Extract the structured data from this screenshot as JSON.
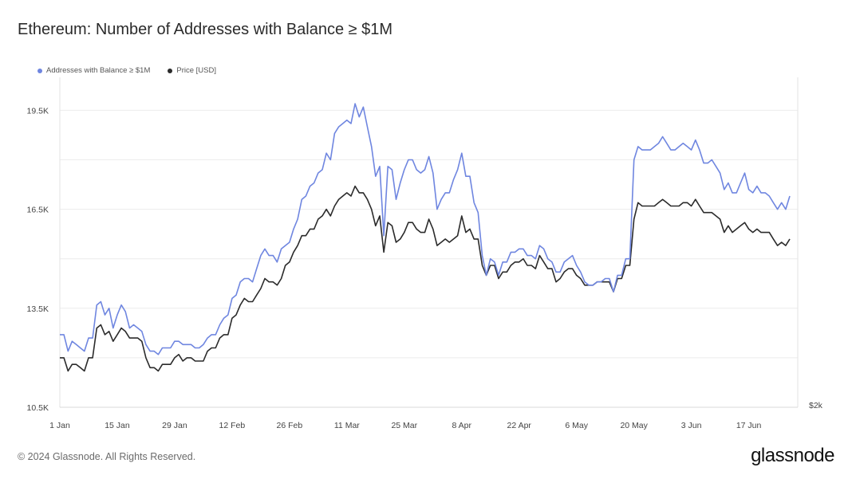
{
  "title": "Ethereum: Number of Addresses with Balance ≥ $1M",
  "legend": [
    {
      "label": "Addresses with Balance ≥ $1M",
      "color": "#6f86e0"
    },
    {
      "label": "Price [USD]",
      "color": "#2b2b2b"
    }
  ],
  "footer": "© 2024 Glassnode. All Rights Reserved.",
  "brand": "glassnode",
  "chart_data": {
    "type": "line",
    "x_tick_labels": [
      "1 Jan",
      "15 Jan",
      "29 Jan",
      "12 Feb",
      "26 Feb",
      "11 Mar",
      "25 Mar",
      "8 Apr",
      "22 Apr",
      "6 May",
      "20 May",
      "3 Jun",
      "17 Jun"
    ],
    "y_left_ticks": [
      "10.5K",
      "13.5K",
      "16.5K",
      "19.5K"
    ],
    "y_left_range": [
      10500,
      20500
    ],
    "y_right_ticks": [
      "$2k"
    ],
    "grid": true,
    "legend_position": "top-left",
    "x_days": [
      0,
      1,
      2,
      3,
      4,
      5,
      6,
      7,
      8,
      9,
      10,
      11,
      12,
      13,
      14,
      15,
      16,
      17,
      18,
      19,
      20,
      21,
      22,
      23,
      24,
      25,
      26,
      27,
      28,
      29,
      30,
      31,
      32,
      33,
      34,
      35,
      36,
      37,
      38,
      39,
      40,
      41,
      42,
      43,
      44,
      45,
      46,
      47,
      48,
      49,
      50,
      51,
      52,
      53,
      54,
      55,
      56,
      57,
      58,
      59,
      60,
      61,
      62,
      63,
      64,
      65,
      66,
      67,
      68,
      69,
      70,
      71,
      72,
      73,
      74,
      75,
      76,
      77,
      78,
      79,
      80,
      81,
      82,
      83,
      84,
      85,
      86,
      87,
      88,
      89,
      90,
      91,
      92,
      93,
      94,
      95,
      96,
      97,
      98,
      99,
      100,
      101,
      102,
      103,
      104,
      105,
      106,
      107,
      108,
      109,
      110,
      111,
      112,
      113,
      114,
      115,
      116,
      117,
      118,
      119,
      120,
      121,
      122,
      123,
      124,
      125,
      126,
      127,
      128,
      129,
      130,
      131,
      132,
      133,
      134,
      135,
      136,
      137,
      138,
      139,
      140,
      141,
      142,
      143,
      144,
      145,
      146,
      147,
      148,
      149,
      150,
      151,
      152,
      153,
      154,
      155,
      156,
      157,
      158,
      159,
      160,
      161,
      162,
      163,
      164,
      165,
      166,
      167,
      168,
      169,
      170,
      171,
      172,
      173,
      174,
      175,
      176,
      177,
      178
    ],
    "series": [
      {
        "name": "Addresses with Balance ≥ $1M",
        "axis": "left",
        "values": [
          12700,
          12700,
          12200,
          12500,
          12400,
          12300,
          12200,
          12600,
          12600,
          13600,
          13700,
          13300,
          13500,
          12900,
          13300,
          13600,
          13400,
          12900,
          13000,
          12900,
          12800,
          12400,
          12200,
          12200,
          12100,
          12300,
          12300,
          12300,
          12500,
          12500,
          12400,
          12400,
          12400,
          12300,
          12300,
          12400,
          12600,
          12700,
          12700,
          13000,
          13200,
          13300,
          13800,
          13900,
          14300,
          14400,
          14400,
          14300,
          14700,
          15100,
          15300,
          15100,
          15100,
          14900,
          15300,
          15400,
          15500,
          15900,
          16200,
          16800,
          16900,
          17200,
          17300,
          17600,
          17700,
          18200,
          18000,
          18800,
          19000,
          19100,
          19200,
          19100,
          19700,
          19300,
          19600,
          19000,
          18400,
          17500,
          17800,
          15700,
          17800,
          17700,
          16800,
          17300,
          17700,
          18000,
          18000,
          17700,
          17600,
          17700,
          18100,
          17600,
          16500,
          16800,
          17000,
          17000,
          17400,
          17700,
          18200,
          17500,
          17500,
          16700,
          16400,
          15100,
          14500,
          15000,
          14900,
          14500,
          14900,
          14900,
          15200,
          15200,
          15300,
          15300,
          15100,
          15100,
          15000,
          15400,
          15300,
          15000,
          14900,
          14600,
          14600,
          14900,
          15000,
          15100,
          14800,
          14600,
          14300,
          14200,
          14200,
          14300,
          14300,
          14400,
          14400,
          14000,
          14500,
          14500,
          15000,
          15000,
          18000,
          18400,
          18300,
          18300,
          18300,
          18400,
          18500,
          18700,
          18500,
          18300,
          18300,
          18400,
          18500,
          18400,
          18300,
          18600,
          18300,
          17900,
          17900,
          18000,
          17800,
          17600,
          17100,
          17300,
          17000,
          17000,
          17300,
          17600,
          17100,
          17000,
          17200,
          17000,
          17000,
          16900,
          16700,
          16500,
          16700,
          16500,
          16900
        ]
      },
      {
        "name": "Price [USD]",
        "axis": "right",
        "values": [
          12000,
          12000,
          11600,
          11800,
          11800,
          11700,
          11600,
          12000,
          12000,
          12900,
          13000,
          12700,
          12800,
          12500,
          12700,
          12900,
          12800,
          12600,
          12600,
          12600,
          12500,
          12000,
          11700,
          11700,
          11600,
          11800,
          11800,
          11800,
          12000,
          12100,
          11900,
          12000,
          12000,
          11900,
          11900,
          11900,
          12200,
          12300,
          12300,
          12600,
          12700,
          12700,
          13200,
          13300,
          13600,
          13800,
          13700,
          13700,
          13900,
          14100,
          14400,
          14300,
          14300,
          14200,
          14400,
          14800,
          14900,
          15200,
          15400,
          15700,
          15700,
          15900,
          15900,
          16200,
          16300,
          16500,
          16300,
          16600,
          16800,
          16900,
          17000,
          16900,
          17200,
          17000,
          17000,
          16800,
          16500,
          16000,
          16300,
          15200,
          16100,
          16000,
          15500,
          15600,
          15800,
          16100,
          16100,
          15900,
          15800,
          15800,
          16200,
          15900,
          15400,
          15500,
          15600,
          15500,
          15600,
          15700,
          16300,
          15800,
          15900,
          15600,
          15600,
          14800,
          14500,
          14800,
          14800,
          14400,
          14600,
          14600,
          14800,
          14900,
          14900,
          15000,
          14800,
          14800,
          14700,
          15100,
          14900,
          14700,
          14700,
          14300,
          14400,
          14600,
          14700,
          14700,
          14500,
          14400,
          14200,
          14200,
          14200,
          14300,
          14300,
          14300,
          14300,
          14000,
          14400,
          14400,
          14800,
          14800,
          16200,
          16700,
          16600,
          16600,
          16600,
          16600,
          16700,
          16800,
          16700,
          16600,
          16600,
          16600,
          16700,
          16700,
          16600,
          16800,
          16600,
          16400,
          16400,
          16400,
          16300,
          16200,
          15800,
          16000,
          15800,
          15900,
          16000,
          16100,
          15900,
          15800,
          15900,
          15800,
          15800,
          15800,
          15600,
          15400,
          15500,
          15400,
          15600
        ]
      }
    ]
  }
}
